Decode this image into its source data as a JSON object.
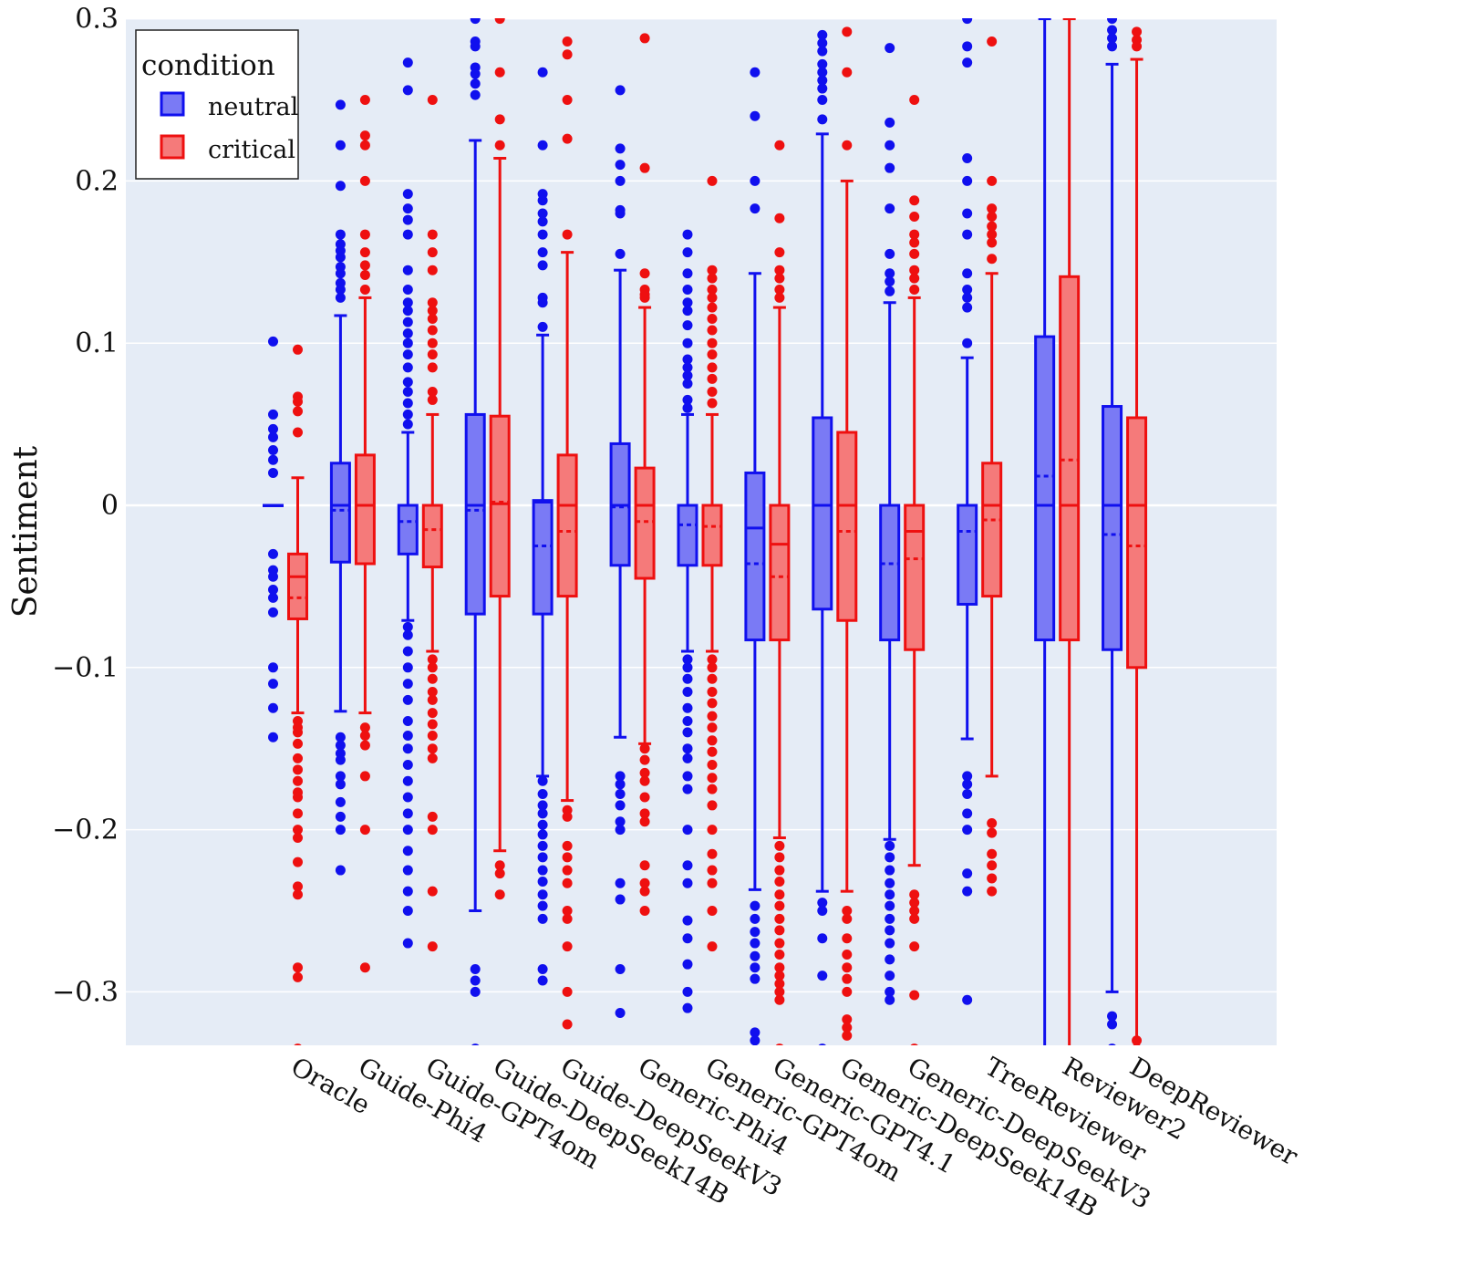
{
  "chart_data": {
    "type": "box",
    "ylabel": "Sentiment",
    "xlabel": "",
    "ylim": [
      -0.335,
      0.3
    ],
    "yticks": [
      {
        "v": 0.3,
        "label": "0.3"
      },
      {
        "v": 0.2,
        "label": "0.2"
      },
      {
        "v": 0.1,
        "label": "0.1"
      },
      {
        "v": 0,
        "label": "0"
      },
      {
        "v": -0.1,
        "label": "−0.1"
      },
      {
        "v": -0.2,
        "label": "−0.2"
      },
      {
        "v": -0.3,
        "label": "−0.3"
      }
    ],
    "legend": {
      "title": "condition",
      "position": "top-left",
      "entries": [
        {
          "name": "neutral",
          "key": "neutral"
        },
        {
          "name": "critical",
          "key": "critical"
        }
      ]
    },
    "colors": {
      "neutral_line": "#1010ee",
      "neutral_fill": "#7a7af5",
      "critical_line": "#ee1010",
      "critical_fill": "#f57a7a",
      "plot_bg": "#e5ecf6",
      "grid": "#ffffff"
    },
    "categories": [
      {
        "name": "Oracle",
        "slot": 0,
        "neutral": {
          "q1": 0,
          "median": 0,
          "q3": 0,
          "mean": 0,
          "low": 0,
          "high": 0,
          "outliers": [
            0.101,
            0.056,
            0.047,
            0.042,
            0.034,
            0.028,
            0.02,
            -0.03,
            -0.04,
            -0.044,
            -0.052,
            -0.057,
            -0.066,
            -0.1,
            -0.11,
            -0.125,
            -0.143
          ]
        },
        "critical": {
          "q1": -0.07,
          "median": -0.044,
          "q3": -0.03,
          "mean": -0.057,
          "low": -0.128,
          "high": 0.017,
          "outliers": [
            0.096,
            0.067,
            0.064,
            0.058,
            0.045,
            -0.133,
            -0.137,
            -0.14,
            -0.147,
            -0.156,
            -0.163,
            -0.17,
            -0.177,
            -0.18,
            -0.19,
            -0.2,
            -0.205,
            -0.22,
            -0.235,
            -0.24,
            -0.285,
            -0.291,
            -0.335
          ]
        }
      },
      {
        "name": "Guide-Phi4",
        "slot": 1,
        "neutral": {
          "q1": -0.035,
          "median": 0,
          "q3": 0.026,
          "mean": -0.003,
          "low": -0.127,
          "high": 0.117,
          "outliers": [
            0.247,
            0.222,
            0.197,
            0.167,
            0.161,
            0.157,
            0.153,
            0.147,
            0.143,
            0.137,
            0.133,
            0.128,
            -0.143,
            -0.148,
            -0.153,
            -0.157,
            -0.167,
            -0.172,
            -0.183,
            -0.192,
            -0.2,
            -0.225
          ]
        },
        "critical": {
          "q1": -0.036,
          "median": 0,
          "q3": 0.031,
          "mean": 0,
          "low": -0.128,
          "high": 0.128,
          "outliers": [
            0.25,
            0.228,
            0.222,
            0.2,
            0.167,
            0.156,
            0.148,
            0.142,
            0.133,
            -0.137,
            -0.142,
            -0.148,
            -0.167,
            -0.2,
            -0.285
          ]
        }
      },
      {
        "name": "Guide-GPT4om",
        "slot": 2,
        "neutral": {
          "q1": -0.03,
          "median": 0,
          "q3": 0,
          "mean": -0.01,
          "low": -0.071,
          "high": 0.045,
          "outliers": [
            0.273,
            0.256,
            0.192,
            0.183,
            0.176,
            0.167,
            0.145,
            0.133,
            0.125,
            0.12,
            0.113,
            0.106,
            0.1,
            0.093,
            0.085,
            0.076,
            0.07,
            0.063,
            0.056,
            0.05,
            -0.075,
            -0.08,
            -0.09,
            -0.1,
            -0.11,
            -0.12,
            -0.133,
            -0.142,
            -0.15,
            -0.16,
            -0.17,
            -0.18,
            -0.19,
            -0.2,
            -0.213,
            -0.225,
            -0.238,
            -0.25,
            -0.27
          ]
        },
        "critical": {
          "q1": -0.038,
          "median": 0,
          "q3": 0,
          "mean": -0.015,
          "low": -0.09,
          "high": 0.056,
          "outliers": [
            0.25,
            0.167,
            0.156,
            0.145,
            0.125,
            0.12,
            0.115,
            0.108,
            0.1,
            0.093,
            0.085,
            0.07,
            0.065,
            -0.095,
            -0.1,
            -0.107,
            -0.115,
            -0.12,
            -0.128,
            -0.135,
            -0.142,
            -0.15,
            -0.156,
            -0.192,
            -0.2,
            -0.238,
            -0.272
          ]
        }
      },
      {
        "name": "Guide-DeepSeek14B",
        "slot": 3,
        "neutral": {
          "q1": -0.067,
          "median": 0,
          "q3": 0.056,
          "mean": -0.003,
          "low": -0.25,
          "high": 0.225,
          "outliers": [
            0.3,
            0.286,
            0.283,
            0.27,
            0.266,
            0.26,
            0.253,
            -0.286,
            -0.293,
            -0.3,
            -0.335
          ]
        },
        "critical": {
          "q1": -0.056,
          "median": 0.001,
          "q3": 0.055,
          "mean": 0.002,
          "low": -0.213,
          "high": 0.214,
          "outliers": [
            0.3,
            0.267,
            0.238,
            0.222,
            -0.222,
            -0.227,
            -0.24
          ]
        }
      },
      {
        "name": "Guide-DeepSeekV3",
        "slot": 4,
        "neutral": {
          "q1": -0.067,
          "median": 0.002,
          "q3": 0.003,
          "mean": -0.025,
          "low": -0.167,
          "high": 0.105,
          "outliers": [
            0.267,
            0.222,
            0.192,
            0.188,
            0.18,
            0.175,
            0.167,
            0.156,
            0.148,
            0.128,
            0.125,
            0.11,
            -0.17,
            -0.178,
            -0.185,
            -0.19,
            -0.197,
            -0.203,
            -0.21,
            -0.217,
            -0.225,
            -0.232,
            -0.24,
            -0.247,
            -0.255,
            -0.286,
            -0.293
          ]
        },
        "critical": {
          "q1": -0.056,
          "median": 0,
          "q3": 0.031,
          "mean": -0.016,
          "low": -0.182,
          "high": 0.156,
          "outliers": [
            0.286,
            0.278,
            0.25,
            0.226,
            0.167,
            -0.188,
            -0.192,
            -0.21,
            -0.217,
            -0.225,
            -0.233,
            -0.25,
            -0.255,
            -0.272,
            -0.3,
            -0.32
          ]
        }
      },
      {
        "name": "Generic-Phi4",
        "slot": 5.15,
        "neutral": {
          "q1": -0.037,
          "median": 0,
          "q3": 0.038,
          "mean": -0.001,
          "low": -0.143,
          "high": 0.145,
          "outliers": [
            0.256,
            0.22,
            0.21,
            0.2,
            0.182,
            0.18,
            0.155,
            -0.167,
            -0.172,
            -0.178,
            -0.185,
            -0.195,
            -0.2,
            -0.233,
            -0.243,
            -0.286,
            -0.313
          ]
        },
        "critical": {
          "q1": -0.045,
          "median": 0,
          "q3": 0.023,
          "mean": -0.01,
          "low": -0.147,
          "high": 0.122,
          "outliers": [
            0.288,
            0.208,
            0.143,
            0.133,
            0.13,
            0.128,
            -0.15,
            -0.157,
            -0.165,
            -0.17,
            -0.18,
            -0.19,
            -0.195,
            -0.222,
            -0.233,
            -0.238,
            -0.25
          ]
        }
      },
      {
        "name": "Generic-GPT4om",
        "slot": 6.15,
        "neutral": {
          "q1": -0.037,
          "median": 0,
          "q3": 0,
          "mean": -0.012,
          "low": -0.09,
          "high": 0.056,
          "outliers": [
            0.167,
            0.156,
            0.143,
            0.133,
            0.125,
            0.12,
            0.111,
            0.1,
            0.09,
            0.085,
            0.08,
            0.075,
            0.065,
            0.06,
            -0.095,
            -0.1,
            -0.107,
            -0.115,
            -0.125,
            -0.133,
            -0.14,
            -0.15,
            -0.156,
            -0.167,
            -0.175,
            -0.2,
            -0.222,
            -0.233,
            -0.256,
            -0.267,
            -0.283,
            -0.3,
            -0.31
          ]
        },
        "critical": {
          "q1": -0.037,
          "median": 0,
          "q3": 0,
          "mean": -0.013,
          "low": -0.09,
          "high": 0.056,
          "outliers": [
            0.2,
            0.145,
            0.14,
            0.133,
            0.128,
            0.122,
            0.115,
            0.108,
            0.1,
            0.093,
            0.085,
            0.078,
            0.07,
            0.063,
            -0.095,
            -0.1,
            -0.107,
            -0.115,
            -0.122,
            -0.13,
            -0.137,
            -0.145,
            -0.152,
            -0.16,
            -0.168,
            -0.175,
            -0.185,
            -0.2,
            -0.215,
            -0.225,
            -0.233,
            -0.25,
            -0.272
          ]
        }
      },
      {
        "name": "Generic-GPT4.1",
        "slot": 7.15,
        "neutral": {
          "q1": -0.083,
          "median": -0.014,
          "q3": 0.02,
          "mean": -0.036,
          "low": -0.237,
          "high": 0.143,
          "outliers": [
            0.267,
            0.24,
            0.2,
            0.183,
            -0.247,
            -0.255,
            -0.263,
            -0.27,
            -0.278,
            -0.285,
            -0.292,
            -0.325,
            -0.33
          ]
        },
        "critical": {
          "q1": -0.083,
          "median": -0.024,
          "q3": 0,
          "mean": -0.044,
          "low": -0.205,
          "high": 0.122,
          "outliers": [
            0.222,
            0.177,
            0.156,
            0.145,
            0.14,
            0.133,
            0.128,
            -0.21,
            -0.217,
            -0.225,
            -0.232,
            -0.24,
            -0.247,
            -0.255,
            -0.262,
            -0.27,
            -0.277,
            -0.285,
            -0.29,
            -0.295,
            -0.3,
            -0.305,
            -0.335
          ]
        }
      },
      {
        "name": "Generic-DeepSeek14B",
        "slot": 8.15,
        "neutral": {
          "q1": -0.064,
          "median": 0,
          "q3": 0.054,
          "mean": 0,
          "low": -0.238,
          "high": 0.229,
          "outliers": [
            0.29,
            0.285,
            0.28,
            0.272,
            0.267,
            0.262,
            0.257,
            0.25,
            0.238,
            -0.245,
            -0.25,
            -0.267,
            -0.29,
            -0.335
          ]
        },
        "critical": {
          "q1": -0.071,
          "median": 0,
          "q3": 0.045,
          "mean": -0.016,
          "low": -0.238,
          "high": 0.2,
          "outliers": [
            0.292,
            0.267,
            0.222,
            -0.25,
            -0.255,
            -0.267,
            -0.277,
            -0.285,
            -0.292,
            -0.3,
            -0.317,
            -0.322,
            -0.327
          ]
        }
      },
      {
        "name": "Generic-DeepSeekV3",
        "slot": 9.15,
        "neutral": {
          "q1": -0.083,
          "median": 0,
          "q3": 0,
          "mean": -0.036,
          "low": -0.206,
          "high": 0.125,
          "outliers": [
            0.282,
            0.236,
            0.222,
            0.208,
            0.183,
            0.155,
            0.143,
            0.138,
            0.132,
            -0.21,
            -0.217,
            -0.225,
            -0.233,
            -0.24,
            -0.247,
            -0.255,
            -0.262,
            -0.27,
            -0.28,
            -0.29,
            -0.3,
            -0.305
          ]
        },
        "critical": {
          "q1": -0.089,
          "median": -0.016,
          "q3": 0,
          "mean": -0.033,
          "low": -0.222,
          "high": 0.128,
          "outliers": [
            0.25,
            0.188,
            0.178,
            0.167,
            0.162,
            0.155,
            0.145,
            0.14,
            0.133,
            -0.24,
            -0.245,
            -0.25,
            -0.255,
            -0.272,
            -0.302,
            -0.335
          ]
        }
      },
      {
        "name": "TreeReviewer",
        "slot": 10.3,
        "neutral": {
          "q1": -0.061,
          "median": 0,
          "q3": 0,
          "mean": -0.016,
          "low": -0.144,
          "high": 0.091,
          "outliers": [
            0.3,
            0.283,
            0.273,
            0.214,
            0.2,
            0.18,
            0.167,
            0.143,
            0.133,
            0.128,
            0.122,
            0.1,
            -0.167,
            -0.172,
            -0.178,
            -0.19,
            -0.2,
            -0.227,
            -0.238,
            -0.305
          ]
        },
        "critical": {
          "q1": -0.056,
          "median": 0,
          "q3": 0.026,
          "mean": -0.009,
          "low": -0.167,
          "high": 0.143,
          "outliers": [
            0.286,
            0.2,
            0.183,
            0.178,
            0.172,
            0.167,
            0.162,
            0.152,
            -0.196,
            -0.202,
            -0.215,
            -0.222,
            -0.23,
            -0.238
          ]
        }
      },
      {
        "name": "Reviewer2",
        "slot": 11.45,
        "neutral": {
          "q1": -0.083,
          "median": 0,
          "q3": 0.104,
          "mean": 0.018,
          "low": -0.335,
          "high": 0.3,
          "outliers": []
        },
        "critical": {
          "q1": -0.083,
          "median": 0,
          "q3": 0.141,
          "mean": 0.028,
          "low": -0.335,
          "high": 0.3,
          "outliers": []
        }
      },
      {
        "name": "DeepReviewer",
        "slot": 12.45,
        "neutral": {
          "q1": -0.089,
          "median": 0,
          "q3": 0.061,
          "mean": -0.018,
          "low": -0.3,
          "high": 0.272,
          "outliers": [
            0.3,
            0.293,
            0.288,
            0.283,
            -0.315,
            -0.32,
            -0.335
          ]
        },
        "critical": {
          "q1": -0.1,
          "median": 0,
          "q3": 0.054,
          "mean": -0.025,
          "low": -0.335,
          "high": 0.275,
          "outliers": [
            0.292,
            0.287,
            0.283,
            -0.33,
            -0.335
          ]
        }
      }
    ]
  }
}
